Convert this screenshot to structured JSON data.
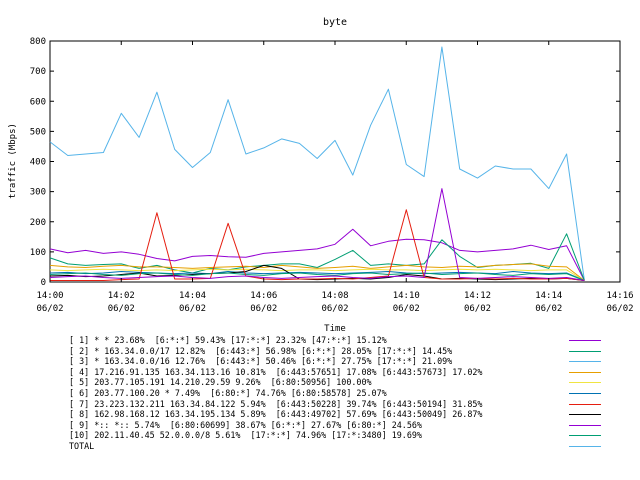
{
  "chart_data": {
    "type": "line",
    "title": "byte",
    "xlabel": "Time",
    "ylabel": "traffic (Mbps)",
    "ylim": [
      0,
      800
    ],
    "yticks": [
      "0",
      "100",
      "200",
      "300",
      "400",
      "500",
      "600",
      "700",
      "800"
    ],
    "xlim": [
      "14:00 06/02",
      "14:16 06/02"
    ],
    "xticks": [
      {
        "time": "14:00",
        "date": "06/02"
      },
      {
        "time": "14:02",
        "date": "06/02"
      },
      {
        "time": "14:04",
        "date": "06/02"
      },
      {
        "time": "14:06",
        "date": "06/02"
      },
      {
        "time": "14:08",
        "date": "06/02"
      },
      {
        "time": "14:10",
        "date": "06/02"
      },
      {
        "time": "14:12",
        "date": "06/02"
      },
      {
        "time": "14:14",
        "date": "06/02"
      },
      {
        "time": "14:16",
        "date": "06/02"
      }
    ],
    "grid": false,
    "legend_position": "bottom",
    "x": [
      "14:00:00",
      "14:00:30",
      "14:01:00",
      "14:01:30",
      "14:02:00",
      "14:02:30",
      "14:03:00",
      "14:03:30",
      "14:04:00",
      "14:04:30",
      "14:05:00",
      "14:05:30",
      "14:06:00",
      "14:06:30",
      "14:07:00",
      "14:07:30",
      "14:08:00",
      "14:08:30",
      "14:09:00",
      "14:09:30",
      "14:10:00",
      "14:10:30",
      "14:11:00",
      "14:11:30",
      "14:12:00",
      "14:12:30",
      "14:13:00",
      "14:13:30",
      "14:14:00",
      "14:14:30",
      "14:15:00"
    ],
    "series": [
      {
        "name": "[ 1] * * 23.68%  [6:*:*] 59.43% [17:*:*] 23.32% [47:*:*] 15.12%",
        "color": "#9400d3",
        "values": [
          110,
          97,
          105,
          95,
          100,
          92,
          78,
          70,
          85,
          88,
          84,
          82,
          95,
          100,
          105,
          110,
          125,
          175,
          120,
          135,
          142,
          140,
          130,
          105,
          100,
          105,
          110,
          122,
          108,
          120,
          5
        ]
      },
      {
        "name": "[ 2] * 163.34.0.0/17 12.82%  [6:443:*] 56.98% [6:*:*] 28.05% [17:*:*] 14.45%",
        "color": "#009e73",
        "values": [
          80,
          60,
          55,
          58,
          60,
          45,
          55,
          40,
          30,
          45,
          40,
          50,
          55,
          60,
          60,
          48,
          75,
          105,
          55,
          60,
          55,
          60,
          140,
          85,
          48,
          55,
          58,
          62,
          45,
          160,
          5
        ]
      },
      {
        "name": "[ 3] * 163.34.0.0/16 12.76%  [6:443:*] 50.46% [6:*:*] 27.75% [17:*:*] 21.09%",
        "color": "#56b4e9",
        "values": [
          465,
          420,
          425,
          430,
          560,
          480,
          630,
          440,
          380,
          430,
          605,
          425,
          445,
          475,
          460,
          410,
          470,
          355,
          520,
          640,
          390,
          350,
          780,
          375,
          345,
          385,
          375,
          375,
          310,
          425,
          5
        ]
      },
      {
        "name": "[ 4] 17.216.91.135 163.34.113.16 10.81%  [6:443:57651] 17.08% [6:443:57673] 17.02%",
        "color": "#e69f00",
        "values": [
          55,
          50,
          48,
          52,
          55,
          50,
          50,
          48,
          45,
          48,
          50,
          52,
          48,
          55,
          50,
          45,
          48,
          52,
          45,
          50,
          55,
          50,
          48,
          52,
          50,
          55,
          58,
          60,
          52,
          50,
          5
        ]
      },
      {
        "name": "[ 5] 203.77.105.191 14.210.29.59 9.26%  [6:80:50956] 100.00%",
        "color": "#f0e442",
        "values": [
          40,
          38,
          40,
          42,
          40,
          38,
          40,
          38,
          40,
          42,
          40,
          42,
          40,
          38,
          40,
          40,
          38,
          40,
          42,
          40,
          40,
          38,
          40,
          42,
          40,
          42,
          40,
          38,
          40,
          40,
          5
        ]
      },
      {
        "name": "[ 6] 203.77.100.20 * 7.49%  [6:80:*] 74.76% [6:80:58578] 25.07%",
        "color": "#0072b2",
        "values": [
          30,
          32,
          28,
          30,
          35,
          32,
          30,
          28,
          30,
          28,
          35,
          30,
          28,
          30,
          32,
          30,
          28,
          30,
          32,
          35,
          30,
          28,
          30,
          32,
          30,
          28,
          35,
          30,
          28,
          30,
          5
        ]
      },
      {
        "name": "[ 7] 23.223.132.211 163.34.84.122 5.94%  [6:443:50228] 39.74% [6:443:50194] 31.85%",
        "color": "#e51e10",
        "values": [
          5,
          5,
          5,
          5,
          8,
          10,
          230,
          10,
          10,
          12,
          195,
          20,
          10,
          8,
          10,
          10,
          12,
          10,
          15,
          20,
          240,
          15,
          10,
          10,
          12,
          10,
          12,
          10,
          10,
          12,
          5
        ]
      },
      {
        "name": "[ 8] 162.98.168.12 163.34.195.134 5.89%  [6:443:49702] 57.69% [6:443:50049] 26.87%",
        "color": "#000000",
        "values": [
          20,
          22,
          18,
          20,
          25,
          30,
          20,
          22,
          25,
          28,
          30,
          35,
          55,
          45,
          10,
          8,
          10,
          12,
          10,
          15,
          25,
          20,
          10,
          12,
          10,
          8,
          10,
          12,
          10,
          12,
          5
        ]
      },
      {
        "name": "[ 9] *:: *:: 5.74%  [6:80:60699] 38.67% [6:*:*] 27.67% [6:80:*] 24.56%",
        "color": "#9400d3",
        "values": [
          15,
          18,
          20,
          15,
          12,
          15,
          18,
          20,
          15,
          12,
          18,
          20,
          15,
          12,
          15,
          18,
          20,
          15,
          12,
          18,
          20,
          15,
          310,
          15,
          12,
          15,
          18,
          15,
          12,
          15,
          5
        ]
      },
      {
        "name": "[10] 202.11.40.45 52.0.0.0/8 5.61%  [17:*:*] 74.96% [17:*:3480] 19.69%",
        "color": "#009e73",
        "values": [
          25,
          28,
          30,
          25,
          22,
          28,
          30,
          25,
          22,
          28,
          30,
          25,
          22,
          28,
          30,
          25,
          22,
          28,
          30,
          25,
          28,
          30,
          25,
          28,
          30,
          25,
          22,
          28,
          25,
          28,
          5
        ]
      }
    ],
    "total_label": "TOTAL",
    "total_color": "#56b4e9"
  }
}
